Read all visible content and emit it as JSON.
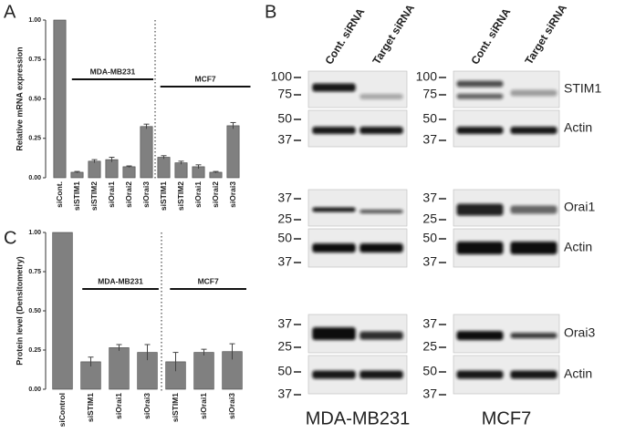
{
  "panels": {
    "a": "A",
    "b": "B",
    "c": "C"
  },
  "chart_data": [
    {
      "type": "bar",
      "y_label": "Relative mRNA expression",
      "categories": [
        "siCont.",
        "siSTIM1",
        "siSTIM2",
        "siOrai1",
        "siOrai2",
        "siOrai3",
        "siSTIM1",
        "siSTIM2",
        "siOrai1",
        "siOrai2",
        "siOrai3"
      ],
      "values": [
        1.0,
        0.035,
        0.105,
        0.115,
        0.07,
        0.325,
        0.13,
        0.095,
        0.07,
        0.035,
        0.33
      ],
      "errors": [
        0,
        0.005,
        0.01,
        0.015,
        0.005,
        0.015,
        0.01,
        0.01,
        0.012,
        0.005,
        0.02
      ],
      "color": "#808080",
      "groups": [
        "MDA-MB231",
        "MCF7"
      ],
      "ylim": [
        0,
        1.0
      ],
      "yticks": [
        {
          "value": 0,
          "label": "0.00"
        },
        {
          "value": 0.25,
          "label": "0.25"
        },
        {
          "value": 0.5,
          "label": "0.50"
        },
        {
          "value": 0.75,
          "label": "0.75"
        },
        {
          "value": 1.0,
          "label": "1.00"
        }
      ]
    },
    {
      "type": "bar",
      "y_label": "Protein level (Densitometry)",
      "categories": [
        "siControl",
        "siSTIM1",
        "siOrai1",
        "siOrai3",
        "siSTIM1",
        "siOrai1",
        "siOrai3"
      ],
      "values": [
        1.0,
        0.175,
        0.265,
        0.235,
        0.175,
        0.235,
        0.24
      ],
      "errors": [
        0,
        0.03,
        0.02,
        0.05,
        0.06,
        0.02,
        0.05
      ],
      "color": "#808080",
      "groups": [
        "MDA-MB231",
        "MCF7"
      ],
      "ylim": [
        0,
        1.0
      ],
      "yticks": [
        {
          "value": 0,
          "label": "0.00"
        },
        {
          "value": 0.25,
          "label": "0.25"
        },
        {
          "value": 0.5,
          "label": "0.50"
        },
        {
          "value": 0.75,
          "label": "0.75"
        },
        {
          "value": 1.0,
          "label": "1.00"
        }
      ]
    }
  ],
  "blot": {
    "lanes": [
      "Cont. siRNA",
      "Target siRNA"
    ],
    "cell_lines": [
      "MDA-MB231",
      "MCF7"
    ],
    "strips": [
      {
        "markers": [
          100,
          75
        ],
        "protein": "STIM1"
      },
      {
        "markers": [
          50,
          37
        ],
        "protein": "Actin"
      },
      {
        "markers": [
          37,
          25
        ],
        "protein": "Orai1"
      },
      {
        "markers": [
          50,
          37
        ],
        "protein": "Actin"
      },
      {
        "markers": [
          37,
          25
        ],
        "protein": "Orai3"
      },
      {
        "markers": [
          50,
          37
        ],
        "protein": "Actin"
      }
    ]
  }
}
